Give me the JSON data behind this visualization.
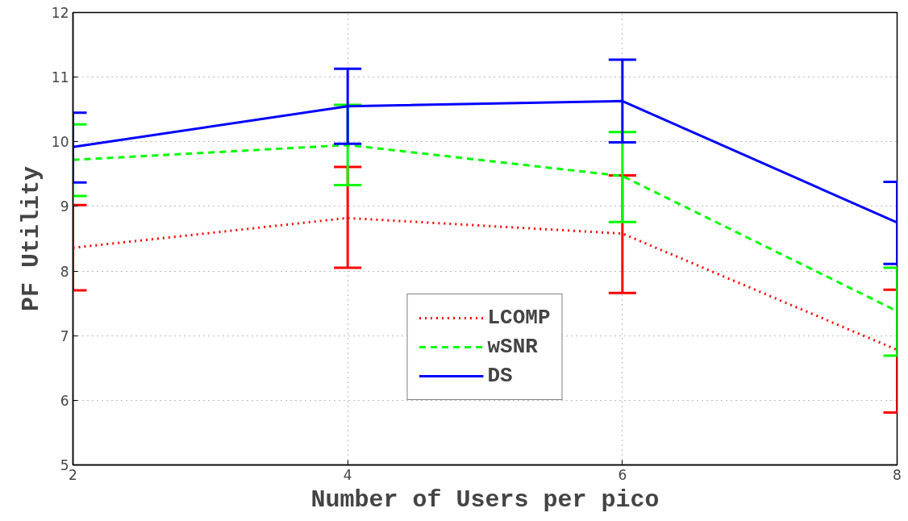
{
  "chart_data": {
    "type": "line",
    "xlabel": "Number of Users per pico",
    "ylabel": "PF Utility",
    "x": [
      2,
      4,
      6,
      8
    ],
    "xlim": [
      2,
      8
    ],
    "xticks": [
      2,
      4,
      6,
      8
    ],
    "ylim": [
      5,
      12
    ],
    "yticks": [
      5,
      6,
      7,
      8,
      9,
      10,
      11,
      12
    ],
    "grid": true,
    "legend": "bottom",
    "marker": "none",
    "series": [
      {
        "name": "LCOMP",
        "color": "#ff0000",
        "line_style": "dotted",
        "values": [
          8.36,
          8.82,
          8.58,
          6.78
        ],
        "errors": [
          [
            7.7,
            9.02
          ],
          [
            8.05,
            9.61
          ],
          [
            7.66,
            9.48
          ],
          [
            5.81,
            7.71
          ]
        ]
      },
      {
        "name": "wSNR",
        "color": "#00ff00",
        "line_style": "dashed",
        "values": [
          9.72,
          9.95,
          9.47,
          7.38
        ],
        "errors": [
          [
            9.16,
            10.27
          ],
          [
            9.33,
            10.57
          ],
          [
            8.76,
            10.15
          ],
          [
            6.69,
            8.05
          ]
        ]
      },
      {
        "name": "DS",
        "color": "#0000ff",
        "line_style": "solid",
        "values": [
          9.92,
          10.55,
          10.63,
          8.75
        ],
        "errors": [
          [
            9.37,
            10.45
          ],
          [
            9.97,
            11.13
          ],
          [
            9.99,
            11.27
          ],
          [
            8.11,
            9.38
          ]
        ]
      }
    ]
  }
}
